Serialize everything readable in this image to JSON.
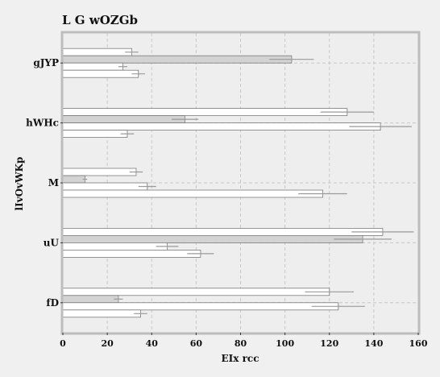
{
  "chart_data": {
    "type": "bar",
    "orientation": "horizontal",
    "title": "L G  wOZGb",
    "xlabel": "EIx rcc",
    "ylabel": "lIvOvWKp",
    "xlim": [
      0,
      160
    ],
    "xticks": [
      "0",
      "20",
      "40",
      "60",
      "80",
      "100",
      "120",
      "140",
      "160"
    ],
    "grid": true,
    "categories": [
      "gJYP",
      "hWHc",
      "M",
      "uU",
      "fD"
    ],
    "series": [
      {
        "fill": "#ffffff",
        "values": [
          31,
          128,
          33,
          144,
          120
        ],
        "errors": [
          3,
          12,
          3,
          14,
          11
        ]
      },
      {
        "fill": "#d3d3d3",
        "values": [
          103,
          55,
          10,
          135,
          25
        ],
        "errors": [
          10,
          6,
          1,
          13,
          2
        ]
      },
      {
        "fill": "#ffffff",
        "values": [
          27,
          143,
          38,
          47,
          124
        ],
        "errors": [
          2,
          14,
          4,
          5,
          12
        ]
      },
      {
        "fill": "#ffffff",
        "values": [
          34,
          29,
          117,
          62,
          35
        ],
        "errors": [
          3,
          3,
          11,
          6,
          3
        ]
      }
    ],
    "colors": {
      "background": "#f0f0f0",
      "plot_background": "#eeeeee",
      "frame": "#bdbdbd",
      "bar_edge": "#7a7a7a",
      "grid": "#c8c8c8",
      "error": "#9a9a9a"
    }
  }
}
